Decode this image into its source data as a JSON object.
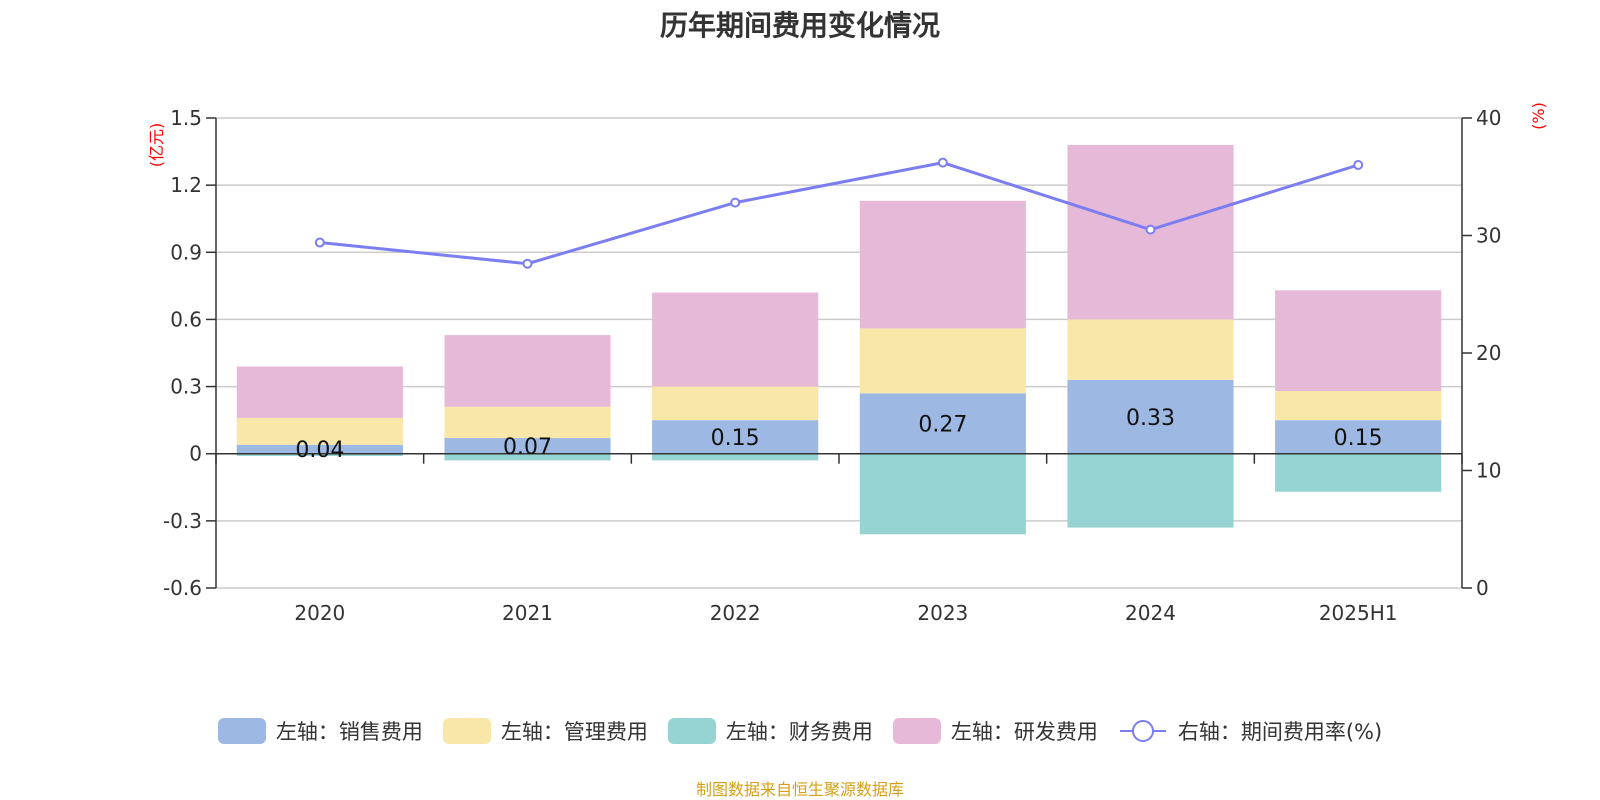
{
  "chart_data": {
    "type": "bar",
    "title": "历年期间费用变化情况",
    "categories": [
      "2020",
      "2021",
      "2022",
      "2023",
      "2024",
      "2025H1"
    ],
    "stacked": true,
    "left_axis": {
      "unit_label": "(亿元)",
      "ylim": [
        -0.6,
        1.5
      ],
      "ticks": [
        "1.5",
        "1.2",
        "0.9",
        "0.6",
        "0.3",
        "0",
        "-0.3",
        "-0.6"
      ],
      "tick_values": [
        1.5,
        1.2,
        0.9,
        0.6,
        0.3,
        0,
        -0.3,
        -0.6
      ]
    },
    "right_axis": {
      "unit_label": "(%)",
      "ylim": [
        0,
        40
      ],
      "ticks": [
        "40",
        "30",
        "20",
        "10",
        "0"
      ],
      "tick_values": [
        40,
        30,
        20,
        10,
        0
      ]
    },
    "series": [
      {
        "name": "左轴：销售费用",
        "type": "bar",
        "axis": "left",
        "color": "#9db8e2",
        "values": [
          0.04,
          0.07,
          0.15,
          0.27,
          0.33,
          0.15
        ],
        "labels": [
          "0.04",
          "0.07",
          "0.15",
          "0.27",
          "0.33",
          "0.15"
        ]
      },
      {
        "name": "左轴：管理费用",
        "type": "bar",
        "axis": "left",
        "color": "#f8e7a9",
        "values": [
          0.12,
          0.14,
          0.15,
          0.29,
          0.27,
          0.13
        ]
      },
      {
        "name": "左轴：财务费用",
        "type": "bar",
        "axis": "left",
        "color": "#96d4d4",
        "values": [
          -0.01,
          -0.03,
          -0.03,
          -0.36,
          -0.33,
          -0.17
        ]
      },
      {
        "name": "左轴：研发费用",
        "type": "bar",
        "axis": "left",
        "color": "#e7b9d9",
        "values": [
          0.23,
          0.32,
          0.42,
          0.57,
          0.78,
          0.45
        ]
      },
      {
        "name": "右轴：期间费用率(%)",
        "type": "line",
        "axis": "right",
        "color": "#7b7ef0",
        "values": [
          29.4,
          27.6,
          32.8,
          36.2,
          30.5,
          36.0
        ]
      }
    ],
    "grid": true,
    "legend_position": "bottom"
  },
  "footer": {
    "source": "制图数据来自恒生聚源数据库"
  }
}
